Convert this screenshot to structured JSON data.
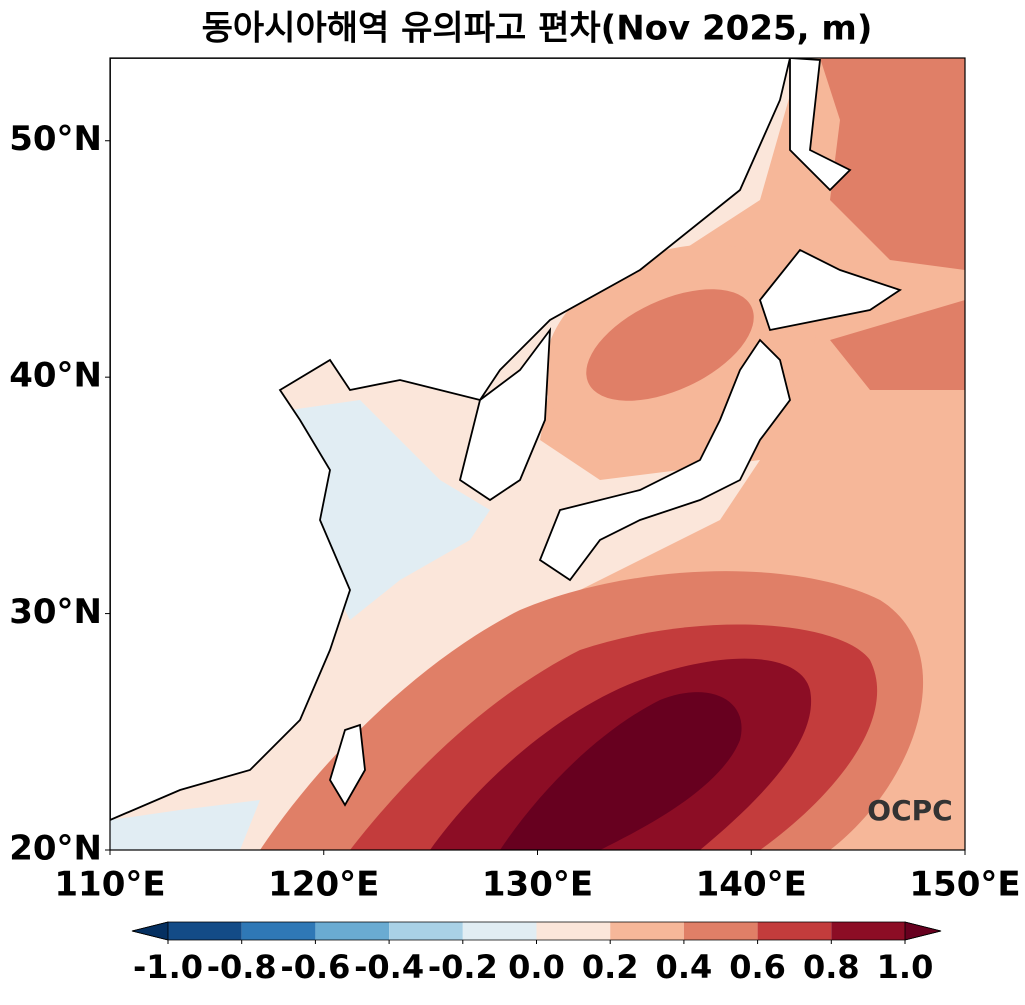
{
  "title": "동아시아해역 유의파고 편차(Nov 2025, m)",
  "map": {
    "xlim": [
      110,
      150
    ],
    "ylim": [
      20,
      53.5
    ],
    "lon_ticks": [
      {
        "value": 110,
        "label": "110°E"
      },
      {
        "value": 120,
        "label": "120°E"
      },
      {
        "value": 130,
        "label": "130°E"
      },
      {
        "value": 140,
        "label": "140°E"
      },
      {
        "value": 150,
        "label": "150°E"
      }
    ],
    "lat_ticks": [
      {
        "value": 20,
        "label": "20°N"
      },
      {
        "value": 30,
        "label": "30°N"
      },
      {
        "value": 40,
        "label": "40°N"
      },
      {
        "value": 50,
        "label": "50°N"
      }
    ]
  },
  "colorbar": {
    "ticks": [
      {
        "value": -1.0,
        "label": "-1.0"
      },
      {
        "value": -0.8,
        "label": "-0.8"
      },
      {
        "value": -0.6,
        "label": "-0.6"
      },
      {
        "value": -0.4,
        "label": "-0.4"
      },
      {
        "value": -0.2,
        "label": "-0.2"
      },
      {
        "value": 0.0,
        "label": "0.0"
      },
      {
        "value": 0.2,
        "label": "0.2"
      },
      {
        "value": 0.4,
        "label": "0.4"
      },
      {
        "value": 0.6,
        "label": "0.6"
      },
      {
        "value": 0.8,
        "label": "0.8"
      },
      {
        "value": 1.0,
        "label": "1.0"
      }
    ],
    "colors": [
      "#134b87",
      "#2f78b6",
      "#6aabd2",
      "#a9d1e6",
      "#e1edf3",
      "#fbe6da",
      "#f6b799",
      "#e07f67",
      "#c33c3c",
      "#8c0d25"
    ],
    "extend_colors": [
      "#053061",
      "#67001f"
    ]
  },
  "logo": "OCPC"
}
